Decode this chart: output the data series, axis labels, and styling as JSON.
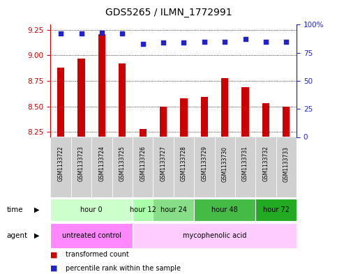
{
  "title": "GDS5265 / ILMN_1772991",
  "samples": [
    "GSM1133722",
    "GSM1133723",
    "GSM1133724",
    "GSM1133725",
    "GSM1133726",
    "GSM1133727",
    "GSM1133728",
    "GSM1133729",
    "GSM1133730",
    "GSM1133731",
    "GSM1133732",
    "GSM1133733"
  ],
  "transformed_count": [
    8.88,
    8.97,
    9.21,
    8.92,
    8.28,
    8.5,
    8.58,
    8.59,
    8.78,
    8.69,
    8.53,
    8.5
  ],
  "percentile_rank": [
    92,
    92,
    93,
    92,
    83,
    84,
    84,
    85,
    85,
    87,
    85,
    85
  ],
  "ylim_left": [
    8.2,
    9.3
  ],
  "ylim_right": [
    0,
    100
  ],
  "yticks_left": [
    8.25,
    8.5,
    8.75,
    9.0,
    9.25
  ],
  "yticks_right": [
    0,
    25,
    50,
    75,
    100
  ],
  "bar_color": "#cc0000",
  "dot_color": "#2222cc",
  "bar_width": 0.35,
  "time_groups": [
    {
      "label": "hour 0",
      "start": 0,
      "end": 3,
      "color": "#ccffcc"
    },
    {
      "label": "hour 12",
      "start": 4,
      "end": 4,
      "color": "#aaffaa"
    },
    {
      "label": "hour 24",
      "start": 5,
      "end": 6,
      "color": "#88dd88"
    },
    {
      "label": "hour 48",
      "start": 7,
      "end": 9,
      "color": "#44bb44"
    },
    {
      "label": "hour 72",
      "start": 10,
      "end": 11,
      "color": "#22aa22"
    }
  ],
  "title_fontsize": 10,
  "tick_fontsize": 7.5,
  "background_color": "#ffffff",
  "left_axis_color": "#cc0000",
  "right_axis_color": "#2222cc",
  "gsm_bg": "#d0d0d0",
  "untreated_color": "#ff88ff",
  "myco_color": "#ffccff"
}
